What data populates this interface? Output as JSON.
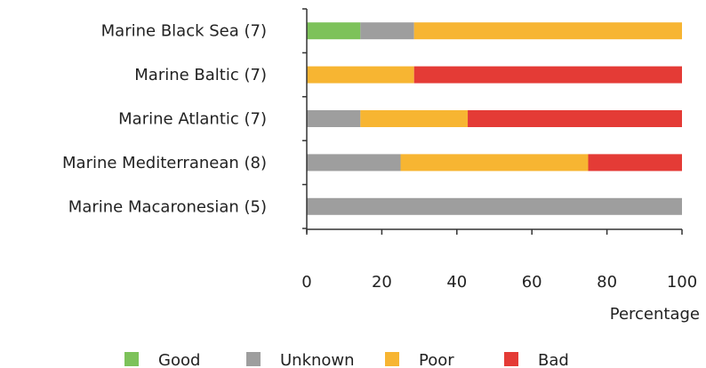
{
  "chart_data": {
    "type": "bar",
    "orientation": "horizontal",
    "stacked": true,
    "categories": [
      "Marine Black Sea (7)",
      "Marine Baltic (7)",
      "Marine Atlantic (7)",
      "Marine Mediterranean (8)",
      "Marine Macaronesian (5)"
    ],
    "series": [
      {
        "name": "Good",
        "color": "#7dc25a",
        "values": [
          14.3,
          0,
          0,
          0,
          0
        ]
      },
      {
        "name": "Unknown",
        "color": "#9e9e9e",
        "values": [
          14.3,
          0,
          14.3,
          25,
          100
        ]
      },
      {
        "name": "Poor",
        "color": "#f7b532",
        "values": [
          71.4,
          28.6,
          28.6,
          50,
          0
        ]
      },
      {
        "name": "Bad",
        "color": "#e43b36",
        "values": [
          0,
          71.4,
          57.1,
          25,
          0
        ]
      }
    ],
    "xlabel": "Percentage",
    "ylabel": "",
    "xlim": [
      0,
      100
    ],
    "xticks": [
      "0",
      "20",
      "40",
      "60",
      "80",
      "100"
    ],
    "grid": false,
    "legend_position": "bottom"
  }
}
